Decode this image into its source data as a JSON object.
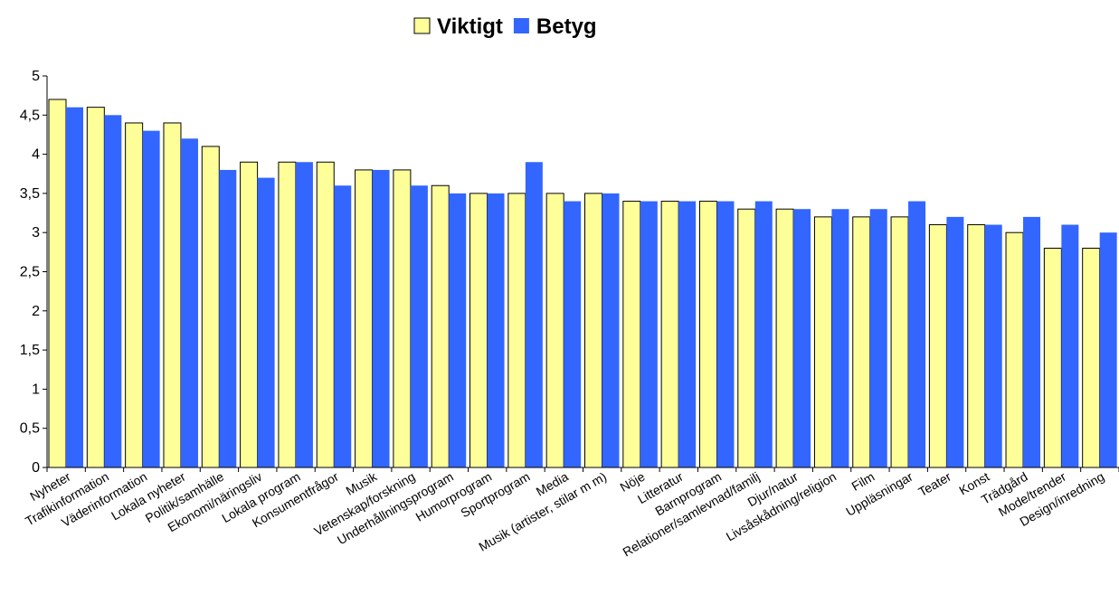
{
  "chart_data": {
    "type": "bar",
    "categories": [
      "Nyheter",
      "Trafikinformation",
      "Väderinformation",
      "Lokala nyheter",
      "Politik/samhälle",
      "Ekonomi/näringsliv",
      "Lokala program",
      "Konsumentfrågor",
      "Musik",
      "Vetenskap/forskning",
      "Underhållningsprogram",
      "Humorprogram",
      "Sportprogram",
      "Media",
      "Musik (artister, stilar m m)",
      "Nöje",
      "Litteratur",
      "Barnprogram",
      "Relationer/samlevnad/familj",
      "Djur/natur",
      "Livsåskådning/religion",
      "Film",
      "Uppläsningar",
      "Teater",
      "Konst",
      "Trädgård",
      "Mode/trender",
      "Design/inredning"
    ],
    "series": [
      {
        "name": "Viktigt",
        "color": "#ffff99",
        "values": [
          4.7,
          4.6,
          4.4,
          4.4,
          4.1,
          3.9,
          3.9,
          3.9,
          3.8,
          3.8,
          3.6,
          3.5,
          3.5,
          3.5,
          3.5,
          3.4,
          3.4,
          3.4,
          3.3,
          3.3,
          3.2,
          3.2,
          3.2,
          3.1,
          3.1,
          3.0,
          2.8,
          2.8
        ]
      },
      {
        "name": "Betyg",
        "color": "#3366ff",
        "values": [
          4.6,
          4.5,
          4.3,
          4.2,
          3.8,
          3.7,
          3.9,
          3.6,
          3.8,
          3.6,
          3.5,
          3.5,
          3.9,
          3.4,
          3.5,
          3.4,
          3.4,
          3.4,
          3.4,
          3.3,
          3.3,
          3.3,
          3.4,
          3.2,
          3.1,
          3.2,
          3.1,
          3.0
        ]
      }
    ],
    "ylim": [
      0,
      5
    ],
    "yticks": [
      0,
      {
        "value": 0.5,
        "label": "0,5"
      },
      1,
      {
        "value": 1.5,
        "label": "1,5"
      },
      2,
      {
        "value": 2.5,
        "label": "2,5"
      },
      3,
      {
        "value": 3.5,
        "label": "3,5"
      },
      4,
      {
        "value": 4.5,
        "label": "4,5"
      },
      5
    ],
    "legend": "top",
    "grid": false
  }
}
